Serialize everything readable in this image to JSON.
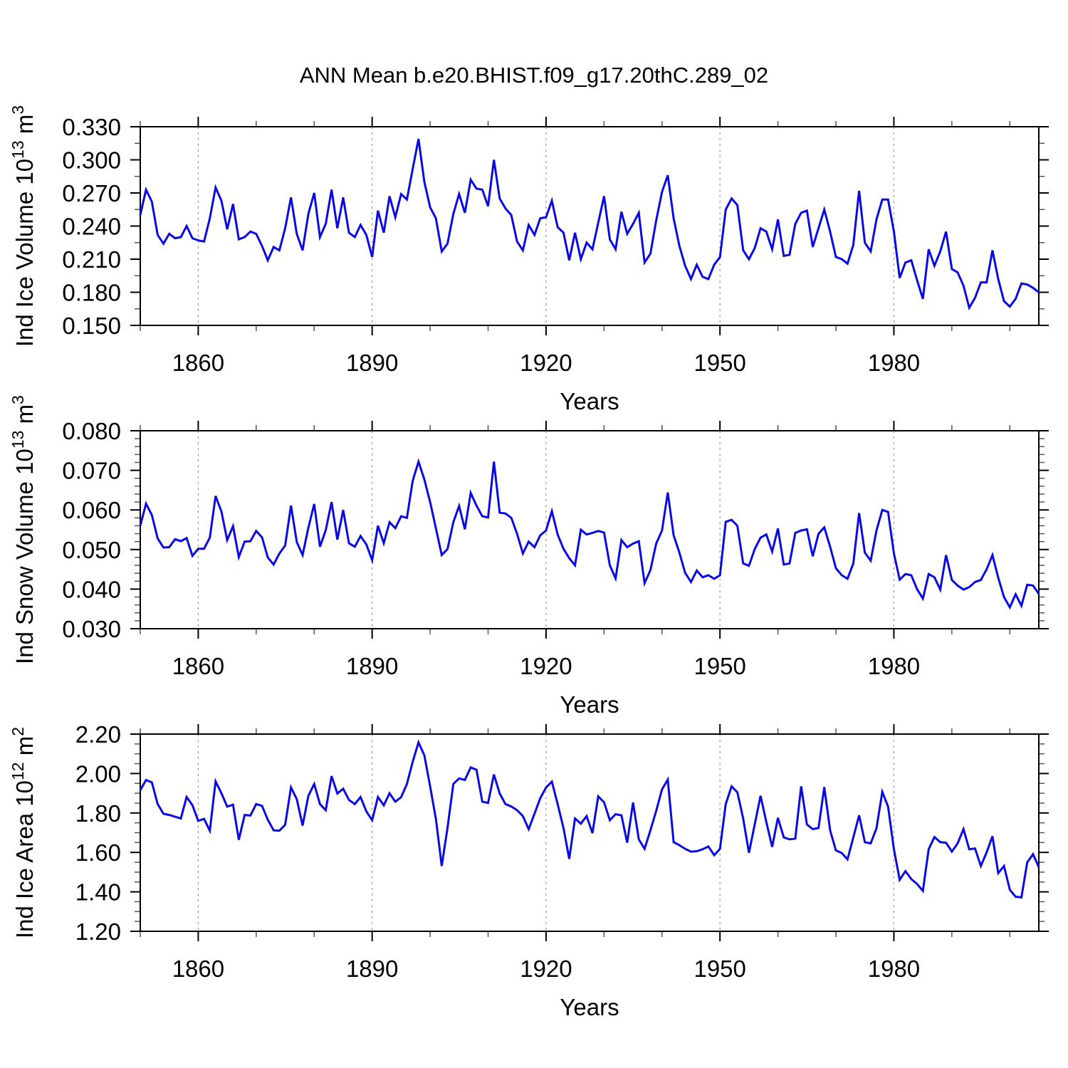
{
  "title": "ANN Mean b.e20.BHIST.f09_g17.20thC.289_02",
  "chart_data": {
    "type": "line",
    "title": "ANN Mean b.e20.BHIST.f09_g17.20thC.289_02",
    "line_color": "#0A0AE0",
    "grid_color": "#999999",
    "x_start": 1850,
    "x_end": 2005,
    "x_step": 1,
    "xlabel": "Years",
    "x_major_ticks": [
      1860,
      1890,
      1920,
      1950,
      1980
    ],
    "x_minor_step": 10,
    "grid": "vertical dashed at major x ticks",
    "panels": [
      {
        "id": "ice-volume",
        "ylabel_plain": "Ind Ice Volume 10^13 m^3",
        "ylabel_parts": [
          {
            "t": "Ind Ice Volume 10",
            "sup": false
          },
          {
            "t": "13",
            "sup": true
          },
          {
            "t": " m",
            "sup": false
          },
          {
            "t": "3",
            "sup": true
          }
        ],
        "ylim": [
          0.15,
          0.33
        ],
        "ytick_labels": [
          "0.150",
          "0.180",
          "0.210",
          "0.240",
          "0.270",
          "0.300",
          "0.330"
        ],
        "y_major_step": 0.03,
        "y_minor_step": 0.015,
        "values": [
          0.25,
          0.273,
          0.262,
          0.232,
          0.224,
          0.233,
          0.229,
          0.23,
          0.24,
          0.229,
          0.227,
          0.226,
          0.247,
          0.275,
          0.263,
          0.237,
          0.26,
          0.228,
          0.23,
          0.235,
          0.233,
          0.222,
          0.209,
          0.221,
          0.218,
          0.238,
          0.266,
          0.233,
          0.218,
          0.251,
          0.27,
          0.23,
          0.242,
          0.273,
          0.238,
          0.266,
          0.234,
          0.23,
          0.241,
          0.232,
          0.212,
          0.254,
          0.234,
          0.267,
          0.248,
          0.269,
          0.264,
          0.292,
          0.319,
          0.28,
          0.257,
          0.247,
          0.217,
          0.224,
          0.251,
          0.269,
          0.252,
          0.282,
          0.274,
          0.273,
          0.258,
          0.3,
          0.265,
          0.256,
          0.25,
          0.226,
          0.218,
          0.241,
          0.232,
          0.247,
          0.248,
          0.263,
          0.239,
          0.234,
          0.209,
          0.234,
          0.21,
          0.225,
          0.219,
          0.243,
          0.267,
          0.228,
          0.219,
          0.253,
          0.233,
          0.242,
          0.252,
          0.207,
          0.215,
          0.245,
          0.271,
          0.286,
          0.247,
          0.222,
          0.204,
          0.192,
          0.205,
          0.194,
          0.192,
          0.205,
          0.212,
          0.255,
          0.265,
          0.259,
          0.218,
          0.21,
          0.22,
          0.238,
          0.235,
          0.219,
          0.246,
          0.213,
          0.214,
          0.242,
          0.252,
          0.254,
          0.221,
          0.238,
          0.255,
          0.235,
          0.212,
          0.21,
          0.206,
          0.223,
          0.272,
          0.225,
          0.217,
          0.246,
          0.264,
          0.264,
          0.235,
          0.193,
          0.207,
          0.209,
          0.191,
          0.174,
          0.219,
          0.204,
          0.217,
          0.235,
          0.201,
          0.198,
          0.186,
          0.166,
          0.175,
          0.189,
          0.189,
          0.218,
          0.192,
          0.172,
          0.167,
          0.174,
          0.188,
          0.187,
          0.184,
          0.18
        ]
      },
      {
        "id": "snow-volume",
        "ylabel_plain": "Ind Snow Volume 10^13 m^3",
        "ylabel_parts": [
          {
            "t": "Ind Snow Volume 10",
            "sup": false
          },
          {
            "t": "13",
            "sup": true
          },
          {
            "t": " m",
            "sup": false
          },
          {
            "t": "3",
            "sup": true
          }
        ],
        "ylim": [
          0.03,
          0.08
        ],
        "ytick_labels": [
          "0.030",
          "0.040",
          "0.050",
          "0.060",
          "0.070",
          "0.080"
        ],
        "y_major_step": 0.01,
        "y_minor_step": 0.002,
        "values": [
          0.056,
          0.0616,
          0.0587,
          0.0528,
          0.0505,
          0.0506,
          0.0526,
          0.0521,
          0.0529,
          0.0484,
          0.0502,
          0.0502,
          0.053,
          0.0635,
          0.0596,
          0.0524,
          0.0559,
          0.0481,
          0.052,
          0.0521,
          0.0547,
          0.0531,
          0.048,
          0.0462,
          0.049,
          0.051,
          0.0611,
          0.0519,
          0.0486,
          0.0555,
          0.0615,
          0.0507,
          0.0549,
          0.062,
          0.0525,
          0.06,
          0.0516,
          0.0507,
          0.0534,
          0.0513,
          0.0473,
          0.056,
          0.0516,
          0.0569,
          0.0554,
          0.0584,
          0.058,
          0.0674,
          0.0722,
          0.0677,
          0.062,
          0.0554,
          0.0486,
          0.0501,
          0.0569,
          0.061,
          0.0551,
          0.0643,
          0.0611,
          0.0584,
          0.0581,
          0.0722,
          0.0593,
          0.0591,
          0.058,
          0.054,
          0.049,
          0.052,
          0.0506,
          0.0536,
          0.0548,
          0.0597,
          0.0538,
          0.0502,
          0.0478,
          0.046,
          0.055,
          0.0538,
          0.0542,
          0.0547,
          0.0543,
          0.046,
          0.0427,
          0.0524,
          0.0506,
          0.0515,
          0.0521,
          0.0415,
          0.0448,
          0.0515,
          0.0548,
          0.0644,
          0.0536,
          0.0492,
          0.0441,
          0.0418,
          0.0447,
          0.043,
          0.0435,
          0.0426,
          0.0435,
          0.057,
          0.0575,
          0.056,
          0.0465,
          0.0459,
          0.0501,
          0.053,
          0.0538,
          0.0495,
          0.0553,
          0.0462,
          0.0465,
          0.0542,
          0.0548,
          0.0551,
          0.0483,
          0.054,
          0.0556,
          0.0507,
          0.0453,
          0.0435,
          0.0426,
          0.0465,
          0.0592,
          0.0492,
          0.0472,
          0.0548,
          0.06,
          0.0595,
          0.049,
          0.0424,
          0.0438,
          0.0435,
          0.04,
          0.0376,
          0.0438,
          0.043,
          0.0399,
          0.0486,
          0.0423,
          0.0409,
          0.0399,
          0.0405,
          0.0418,
          0.0423,
          0.045,
          0.0486,
          0.0429,
          0.038,
          0.0354,
          0.0387,
          0.0358,
          0.0411,
          0.0409,
          0.0388
        ]
      },
      {
        "id": "ice-area",
        "ylabel_plain": "Ind Ice Area 10^12 m^2",
        "ylabel_parts": [
          {
            "t": "Ind Ice Area 10",
            "sup": false
          },
          {
            "t": "12",
            "sup": true
          },
          {
            "t": " m",
            "sup": false
          },
          {
            "t": "2",
            "sup": true
          }
        ],
        "ylim": [
          1.2,
          2.2
        ],
        "ytick_labels": [
          "1.20",
          "1.40",
          "1.60",
          "1.80",
          "2.00",
          "2.20"
        ],
        "y_major_step": 0.2,
        "y_minor_step": 0.05,
        "values": [
          1.915,
          1.967,
          1.955,
          1.845,
          1.796,
          1.79,
          1.781,
          1.772,
          1.881,
          1.839,
          1.76,
          1.77,
          1.71,
          1.96,
          1.9,
          1.832,
          1.842,
          1.664,
          1.79,
          1.787,
          1.845,
          1.836,
          1.766,
          1.712,
          1.71,
          1.74,
          1.93,
          1.87,
          1.736,
          1.887,
          1.947,
          1.845,
          1.814,
          1.987,
          1.899,
          1.923,
          1.866,
          1.845,
          1.881,
          1.808,
          1.763,
          1.881,
          1.839,
          1.9,
          1.857,
          1.88,
          1.947,
          2.06,
          2.158,
          2.092,
          1.935,
          1.77,
          1.531,
          1.724,
          1.947,
          1.975,
          1.967,
          2.031,
          2.019,
          1.857,
          1.851,
          1.995,
          1.899,
          1.845,
          1.833,
          1.814,
          1.784,
          1.718,
          1.796,
          1.875,
          1.929,
          1.959,
          1.845,
          1.724,
          1.567,
          1.772,
          1.746,
          1.784,
          1.698,
          1.884,
          1.854,
          1.763,
          1.794,
          1.788,
          1.649,
          1.853,
          1.666,
          1.618,
          1.712,
          1.81,
          1.92,
          1.969,
          1.652,
          1.637,
          1.618,
          1.604,
          1.606,
          1.616,
          1.63,
          1.586,
          1.618,
          1.845,
          1.935,
          1.905,
          1.772,
          1.598,
          1.742,
          1.887,
          1.754,
          1.628,
          1.775,
          1.676,
          1.666,
          1.67,
          1.935,
          1.742,
          1.718,
          1.724,
          1.931,
          1.712,
          1.61,
          1.597,
          1.565,
          1.676,
          1.788,
          1.652,
          1.646,
          1.722,
          1.907,
          1.832,
          1.616,
          1.461,
          1.505,
          1.465,
          1.44,
          1.405,
          1.616,
          1.678,
          1.652,
          1.649,
          1.604,
          1.646,
          1.718,
          1.616,
          1.62,
          1.531,
          1.6,
          1.682,
          1.495,
          1.531,
          1.411,
          1.375,
          1.372,
          1.549,
          1.591,
          1.525
        ]
      }
    ]
  }
}
